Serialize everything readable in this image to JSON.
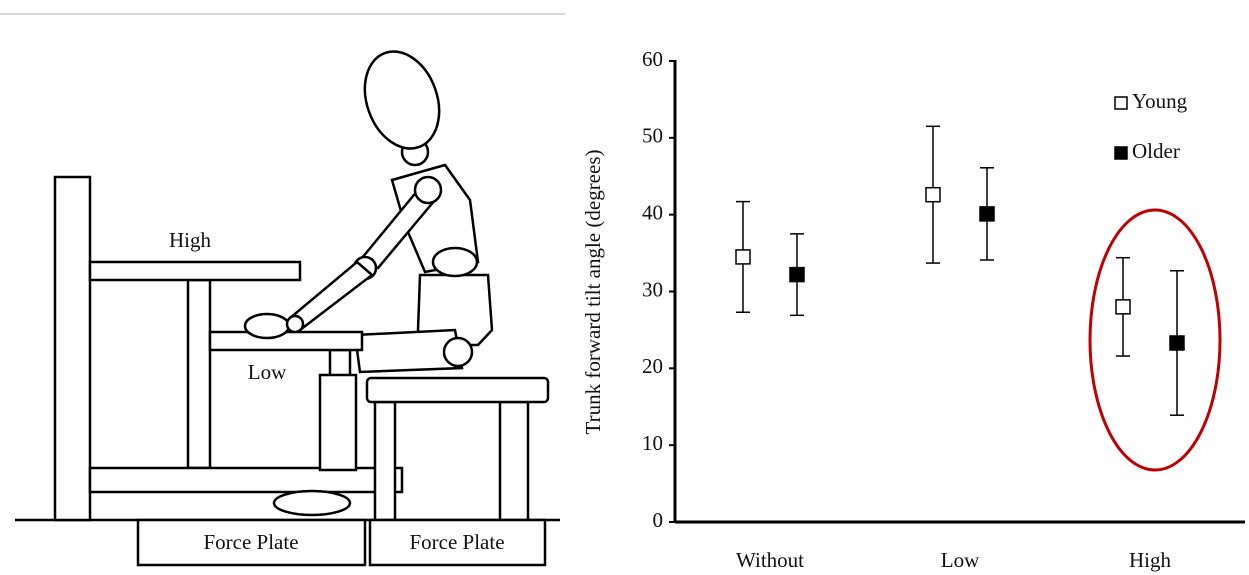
{
  "chart_data": {
    "type": "errorbar",
    "y_label": "Trunk forward tilt angle (degrees)",
    "categories": [
      "Without",
      "Low",
      "High"
    ],
    "series": [
      {
        "name": "Young",
        "color": "#ffffff",
        "values": [
          34.5,
          42.6,
          28.0
        ],
        "errors": [
          7.2,
          8.9,
          6.4
        ]
      },
      {
        "name": "Older",
        "color": "#000000",
        "values": [
          32.2,
          40.1,
          23.3
        ],
        "errors": [
          5.3,
          6.0,
          9.4
        ]
      }
    ],
    "ylim": [
      0,
      60
    ],
    "yticks": [
      0,
      10,
      20,
      30,
      40,
      50,
      60
    ],
    "legend": "upper right",
    "grid": false
  },
  "diagram": {
    "labels": [
      "High",
      "Low"
    ],
    "plates": [
      "Force Plate",
      "Force Plate"
    ]
  }
}
